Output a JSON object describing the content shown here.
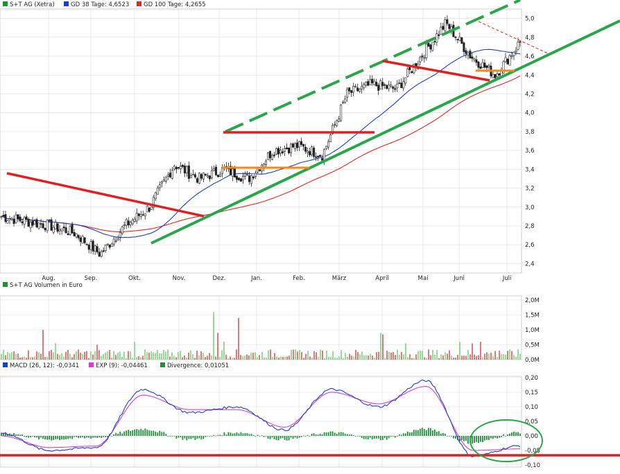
{
  "legend_main": [
    {
      "label": "S+T AG (Xetra)",
      "color": "#1f8f3a"
    },
    {
      "label": "GD 38 Tage: 4,6523",
      "color": "#1a3fd0"
    },
    {
      "label": "GD 100 Tage: 4,2655",
      "color": "#e0281e"
    }
  ],
  "legend_volume": {
    "label": "S+T AG Volumen in Euro",
    "color": "#1f8f3a"
  },
  "legend_macd": [
    {
      "label": "MACD (26, 12): -0,0341",
      "color": "#1a3fd0"
    },
    {
      "label": "EXP (9): -0,04461",
      "color": "#d63fd6"
    },
    {
      "label": "Divergence: 0,01051",
      "color": "#1f8f3a"
    }
  ],
  "chart_data": [
    {
      "type": "candlestick",
      "name": "price",
      "x_tick_labels": [
        "Aug.",
        "Sep.",
        "Okt.",
        "Nov.",
        "Dez.",
        "Jan.",
        "Feb.",
        "März",
        "April",
        "Mai",
        "Juni",
        "Juli"
      ],
      "y_tick_labels": [
        "2,4",
        "2,6",
        "2,8",
        "3,0",
        "3,2",
        "3,4",
        "3,6",
        "3,8",
        "4,0",
        "4,2",
        "4,4",
        "4,6",
        "4,8",
        "5,0"
      ],
      "ylim": [
        2.3,
        5.1
      ],
      "close_keypoints": [
        [
          "Jul",
          2.9
        ],
        [
          "Aug",
          2.85
        ],
        [
          "Sep",
          2.8
        ],
        [
          "Okt",
          2.72
        ],
        [
          "Okt2",
          2.5
        ],
        [
          "Nov",
          2.8
        ],
        [
          "Dez",
          3.0
        ],
        [
          "Dez2",
          3.45
        ],
        [
          "Jan",
          3.3
        ],
        [
          "Jan2",
          3.4
        ],
        [
          "Feb",
          3.3
        ],
        [
          "Feb2",
          3.6
        ],
        [
          "März",
          3.65
        ],
        [
          "März2",
          3.55
        ],
        [
          "April",
          4.2
        ],
        [
          "April2",
          4.3
        ],
        [
          "Mai",
          4.25
        ],
        [
          "Mai2",
          4.6
        ],
        [
          "Juni",
          4.95
        ],
        [
          "Juni2",
          4.6
        ],
        [
          "Juli",
          4.4
        ],
        [
          "Juli2",
          4.75
        ]
      ],
      "gd38_last": 4.6523,
      "gd100_last": 4.2655
    },
    {
      "type": "bar",
      "name": "volume",
      "y_tick_labels": [
        "0,0M",
        "0,5M",
        "1,0M",
        "1,5M",
        "2,0M"
      ],
      "ylim": [
        0,
        2.0
      ],
      "peak_values_M": [
        1.6,
        1.4,
        1.0,
        0.9,
        0.85,
        0.7
      ]
    },
    {
      "type": "line+bar",
      "name": "macd",
      "y_tick_labels": [
        "0,20",
        "0,15",
        "0,10",
        "0,05",
        "0,00",
        "-0,05",
        "-0,10"
      ],
      "ylim": [
        -0.1,
        0.2
      ],
      "macd_keypoints": [
        0.01,
        -0.05,
        -0.04,
        0.16,
        0.08,
        0.1,
        0.02,
        0.16,
        0.1,
        0.19,
        -0.07,
        -0.034
      ],
      "exp_keypoints": [
        0.0,
        -0.04,
        -0.035,
        0.14,
        0.09,
        0.09,
        0.03,
        0.15,
        0.11,
        0.17,
        -0.05,
        -0.0446
      ],
      "divergence_last": 0.01051
    }
  ],
  "colors": {
    "up": "#1f8f3a",
    "down": "#d63232",
    "trend_green": "#2aa64a",
    "trend_red": "#e02020",
    "trend_orange": "#f08a1a",
    "grid": "#dddddd"
  }
}
